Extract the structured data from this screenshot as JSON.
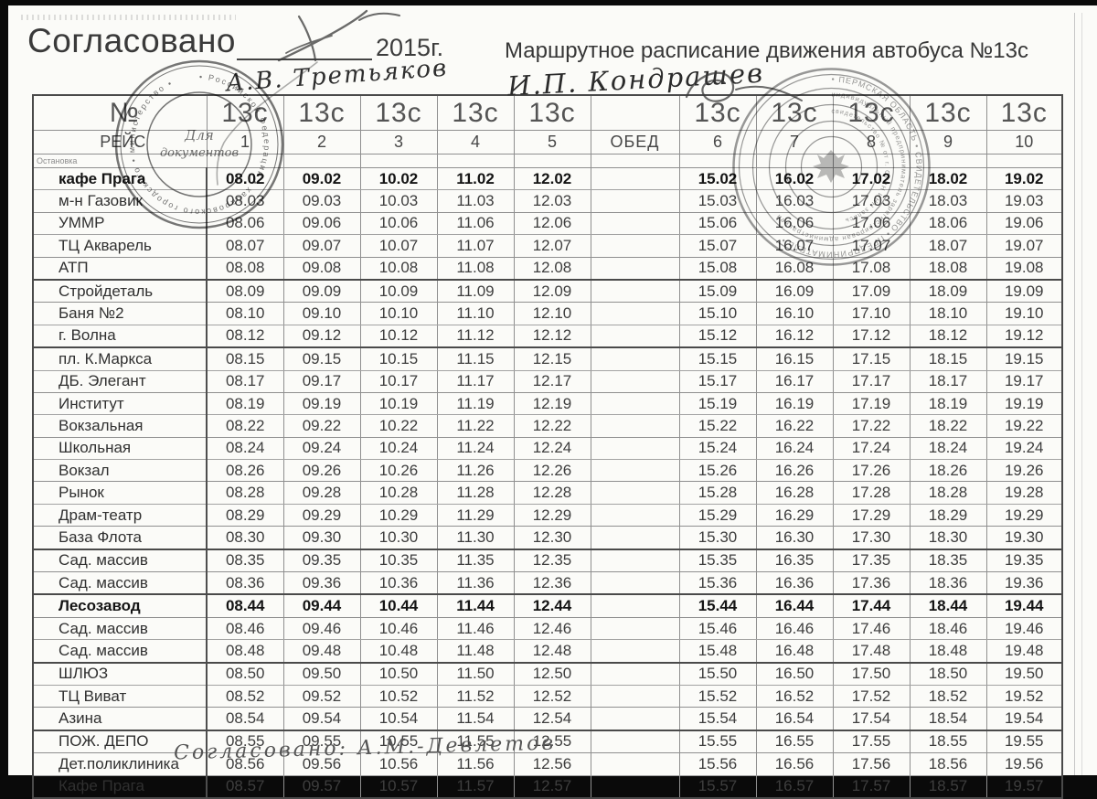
{
  "header": {
    "approved_label": "Согласовано",
    "year": "2015г.",
    "title": "Маршрутное расписание движения автобуса №13с"
  },
  "handwriting": {
    "top_signature_name": "А.В. Третьяков",
    "title_signature_name": "И.П. Кондрашев",
    "bottom_note": "Согласовано: А.М.-Девлетов"
  },
  "stamps": {
    "left": {
      "center_line1": "Для",
      "center_line2": "документов",
      "ring_text": "• Российской Федерации • хабаровского городского • министерство •"
    },
    "right": {
      "ring1_text": "• ПЕРМСКАЯ ОБЛАСТЬ • СВИДЕТЕЛЬСТВО • ПРЕДПРИНИМАТЕЛЬ •",
      "ring2_text": "индивидуальный предприниматель зарегистрирован администрацией",
      "ring3_text": "свидетельство № от г. ОГРН ИНН запись"
    }
  },
  "table": {
    "corner": {
      "number": "№",
      "trip": "РЕЙС",
      "stop": "Остановка"
    },
    "route_label": "13с",
    "lunch_label": "ОБЕД",
    "trip_numbers": [
      "1",
      "2",
      "3",
      "4",
      "5",
      "6",
      "7",
      "8",
      "9",
      "10"
    ],
    "rows": [
      {
        "stop": "кафе Прага",
        "bold": true,
        "times": [
          "08.02",
          "09.02",
          "10.02",
          "11.02",
          "12.02",
          "",
          "15.02",
          "16.02",
          "17.02",
          "18.02",
          "19.02"
        ]
      },
      {
        "stop": "м-н Газовик",
        "times": [
          "08.03",
          "09.03",
          "10.03",
          "11.03",
          "12.03",
          "",
          "15.03",
          "16.03",
          "17.03",
          "18.03",
          "19.03"
        ]
      },
      {
        "stop": "УММР",
        "times": [
          "08.06",
          "09.06",
          "10.06",
          "11.06",
          "12.06",
          "",
          "15.06",
          "16.06",
          "17.06",
          "18.06",
          "19.06"
        ]
      },
      {
        "stop": "ТЦ Акварель",
        "times": [
          "08.07",
          "09.07",
          "10.07",
          "11.07",
          "12.07",
          "",
          "15.07",
          "16.07",
          "17.07",
          "18.07",
          "19.07"
        ]
      },
      {
        "stop": "АТП",
        "sep": true,
        "times": [
          "08.08",
          "09.08",
          "10.08",
          "11.08",
          "12.08",
          "",
          "15.08",
          "16.08",
          "17.08",
          "18.08",
          "19.08"
        ]
      },
      {
        "stop": "Стройдеталь",
        "times": [
          "08.09",
          "09.09",
          "10.09",
          "11.09",
          "12.09",
          "",
          "15.09",
          "16.09",
          "17.09",
          "18.09",
          "19.09"
        ]
      },
      {
        "stop": "Баня №2",
        "times": [
          "08.10",
          "09.10",
          "10.10",
          "11.10",
          "12.10",
          "",
          "15.10",
          "16.10",
          "17.10",
          "18.10",
          "19.10"
        ]
      },
      {
        "stop": "г. Волна",
        "sep": true,
        "times": [
          "08.12",
          "09.12",
          "10.12",
          "11.12",
          "12.12",
          "",
          "15.12",
          "16.12",
          "17.12",
          "18.12",
          "19.12"
        ]
      },
      {
        "stop": "пл. К.Маркса",
        "times": [
          "08.15",
          "09.15",
          "10.15",
          "11.15",
          "12.15",
          "",
          "15.15",
          "16.15",
          "17.15",
          "18.15",
          "19.15"
        ]
      },
      {
        "stop": "ДБ. Элегант",
        "times": [
          "08.17",
          "09.17",
          "10.17",
          "11.17",
          "12.17",
          "",
          "15.17",
          "16.17",
          "17.17",
          "18.17",
          "19.17"
        ]
      },
      {
        "stop": "Институт",
        "times": [
          "08.19",
          "09.19",
          "10.19",
          "11.19",
          "12.19",
          "",
          "15.19",
          "16.19",
          "17.19",
          "18.19",
          "19.19"
        ]
      },
      {
        "stop": "Вокзальная",
        "times": [
          "08.22",
          "09.22",
          "10.22",
          "11.22",
          "12.22",
          "",
          "15.22",
          "16.22",
          "17.22",
          "18.22",
          "19.22"
        ]
      },
      {
        "stop": "Школьная",
        "times": [
          "08.24",
          "09.24",
          "10.24",
          "11.24",
          "12.24",
          "",
          "15.24",
          "16.24",
          "17.24",
          "18.24",
          "19.24"
        ]
      },
      {
        "stop": "Вокзал",
        "times": [
          "08.26",
          "09.26",
          "10.26",
          "11.26",
          "12.26",
          "",
          "15.26",
          "16.26",
          "17.26",
          "18.26",
          "19.26"
        ]
      },
      {
        "stop": "Рынок",
        "times": [
          "08.28",
          "09.28",
          "10.28",
          "11.28",
          "12.28",
          "",
          "15.28",
          "16.28",
          "17.28",
          "18.28",
          "19.28"
        ]
      },
      {
        "stop": "Драм-театр",
        "times": [
          "08.29",
          "09.29",
          "10.29",
          "11.29",
          "12.29",
          "",
          "15.29",
          "16.29",
          "17.29",
          "18.29",
          "19.29"
        ]
      },
      {
        "stop": "База Флота",
        "sep": true,
        "times": [
          "08.30",
          "09.30",
          "10.30",
          "11.30",
          "12.30",
          "",
          "15.30",
          "16.30",
          "17.30",
          "18.30",
          "19.30"
        ]
      },
      {
        "stop": "Сад. массив",
        "times": [
          "08.35",
          "09.35",
          "10.35",
          "11.35",
          "12.35",
          "",
          "15.35",
          "16.35",
          "17.35",
          "18.35",
          "19.35"
        ]
      },
      {
        "stop": "Сад. массив",
        "sep": true,
        "times": [
          "08.36",
          "09.36",
          "10.36",
          "11.36",
          "12.36",
          "",
          "15.36",
          "16.36",
          "17.36",
          "18.36",
          "19.36"
        ]
      },
      {
        "stop": "Лесозавод",
        "bold": true,
        "times": [
          "08.44",
          "09.44",
          "10.44",
          "11.44",
          "12.44",
          "",
          "15.44",
          "16.44",
          "17.44",
          "18.44",
          "19.44"
        ]
      },
      {
        "stop": "Сад. массив",
        "times": [
          "08.46",
          "09.46",
          "10.46",
          "11.46",
          "12.46",
          "",
          "15.46",
          "16.46",
          "17.46",
          "18.46",
          "19.46"
        ]
      },
      {
        "stop": "Сад. массив",
        "sep": true,
        "times": [
          "08.48",
          "09.48",
          "10.48",
          "11.48",
          "12.48",
          "",
          "15.48",
          "16.48",
          "17.48",
          "18.48",
          "19.48"
        ]
      },
      {
        "stop": "ШЛЮЗ",
        "times": [
          "08.50",
          "09.50",
          "10.50",
          "11.50",
          "12.50",
          "",
          "15.50",
          "16.50",
          "17.50",
          "18.50",
          "19.50"
        ]
      },
      {
        "stop": "ТЦ Виват",
        "times": [
          "08.52",
          "09.52",
          "10.52",
          "11.52",
          "12.52",
          "",
          "15.52",
          "16.52",
          "17.52",
          "18.52",
          "19.52"
        ]
      },
      {
        "stop": "Азина",
        "sep": true,
        "times": [
          "08.54",
          "09.54",
          "10.54",
          "11.54",
          "12.54",
          "",
          "15.54",
          "16.54",
          "17.54",
          "18.54",
          "19.54"
        ]
      },
      {
        "stop": "ПОЖ. ДЕПО",
        "times": [
          "08.55",
          "09.55",
          "10.55",
          "11.55",
          "12.55",
          "",
          "15.55",
          "16.55",
          "17.55",
          "18.55",
          "19.55"
        ]
      },
      {
        "stop": "Дет.поликлиника",
        "times": [
          "08.56",
          "09.56",
          "10.56",
          "11.56",
          "12.56",
          "",
          "15.56",
          "16.56",
          "17.56",
          "18.56",
          "19.56"
        ]
      },
      {
        "stop": "Кафе Прага",
        "times": [
          "08.57",
          "09.57",
          "10.57",
          "11.57",
          "12.57",
          "",
          "15.57",
          "16.57",
          "17.57",
          "18.57",
          "19.57"
        ]
      }
    ]
  },
  "colors": {
    "paper": "#fbfbf8",
    "ink": "#3a3a3a",
    "stamp_ink": "#4a4a4a",
    "edge_black": "#0a0a0a"
  }
}
